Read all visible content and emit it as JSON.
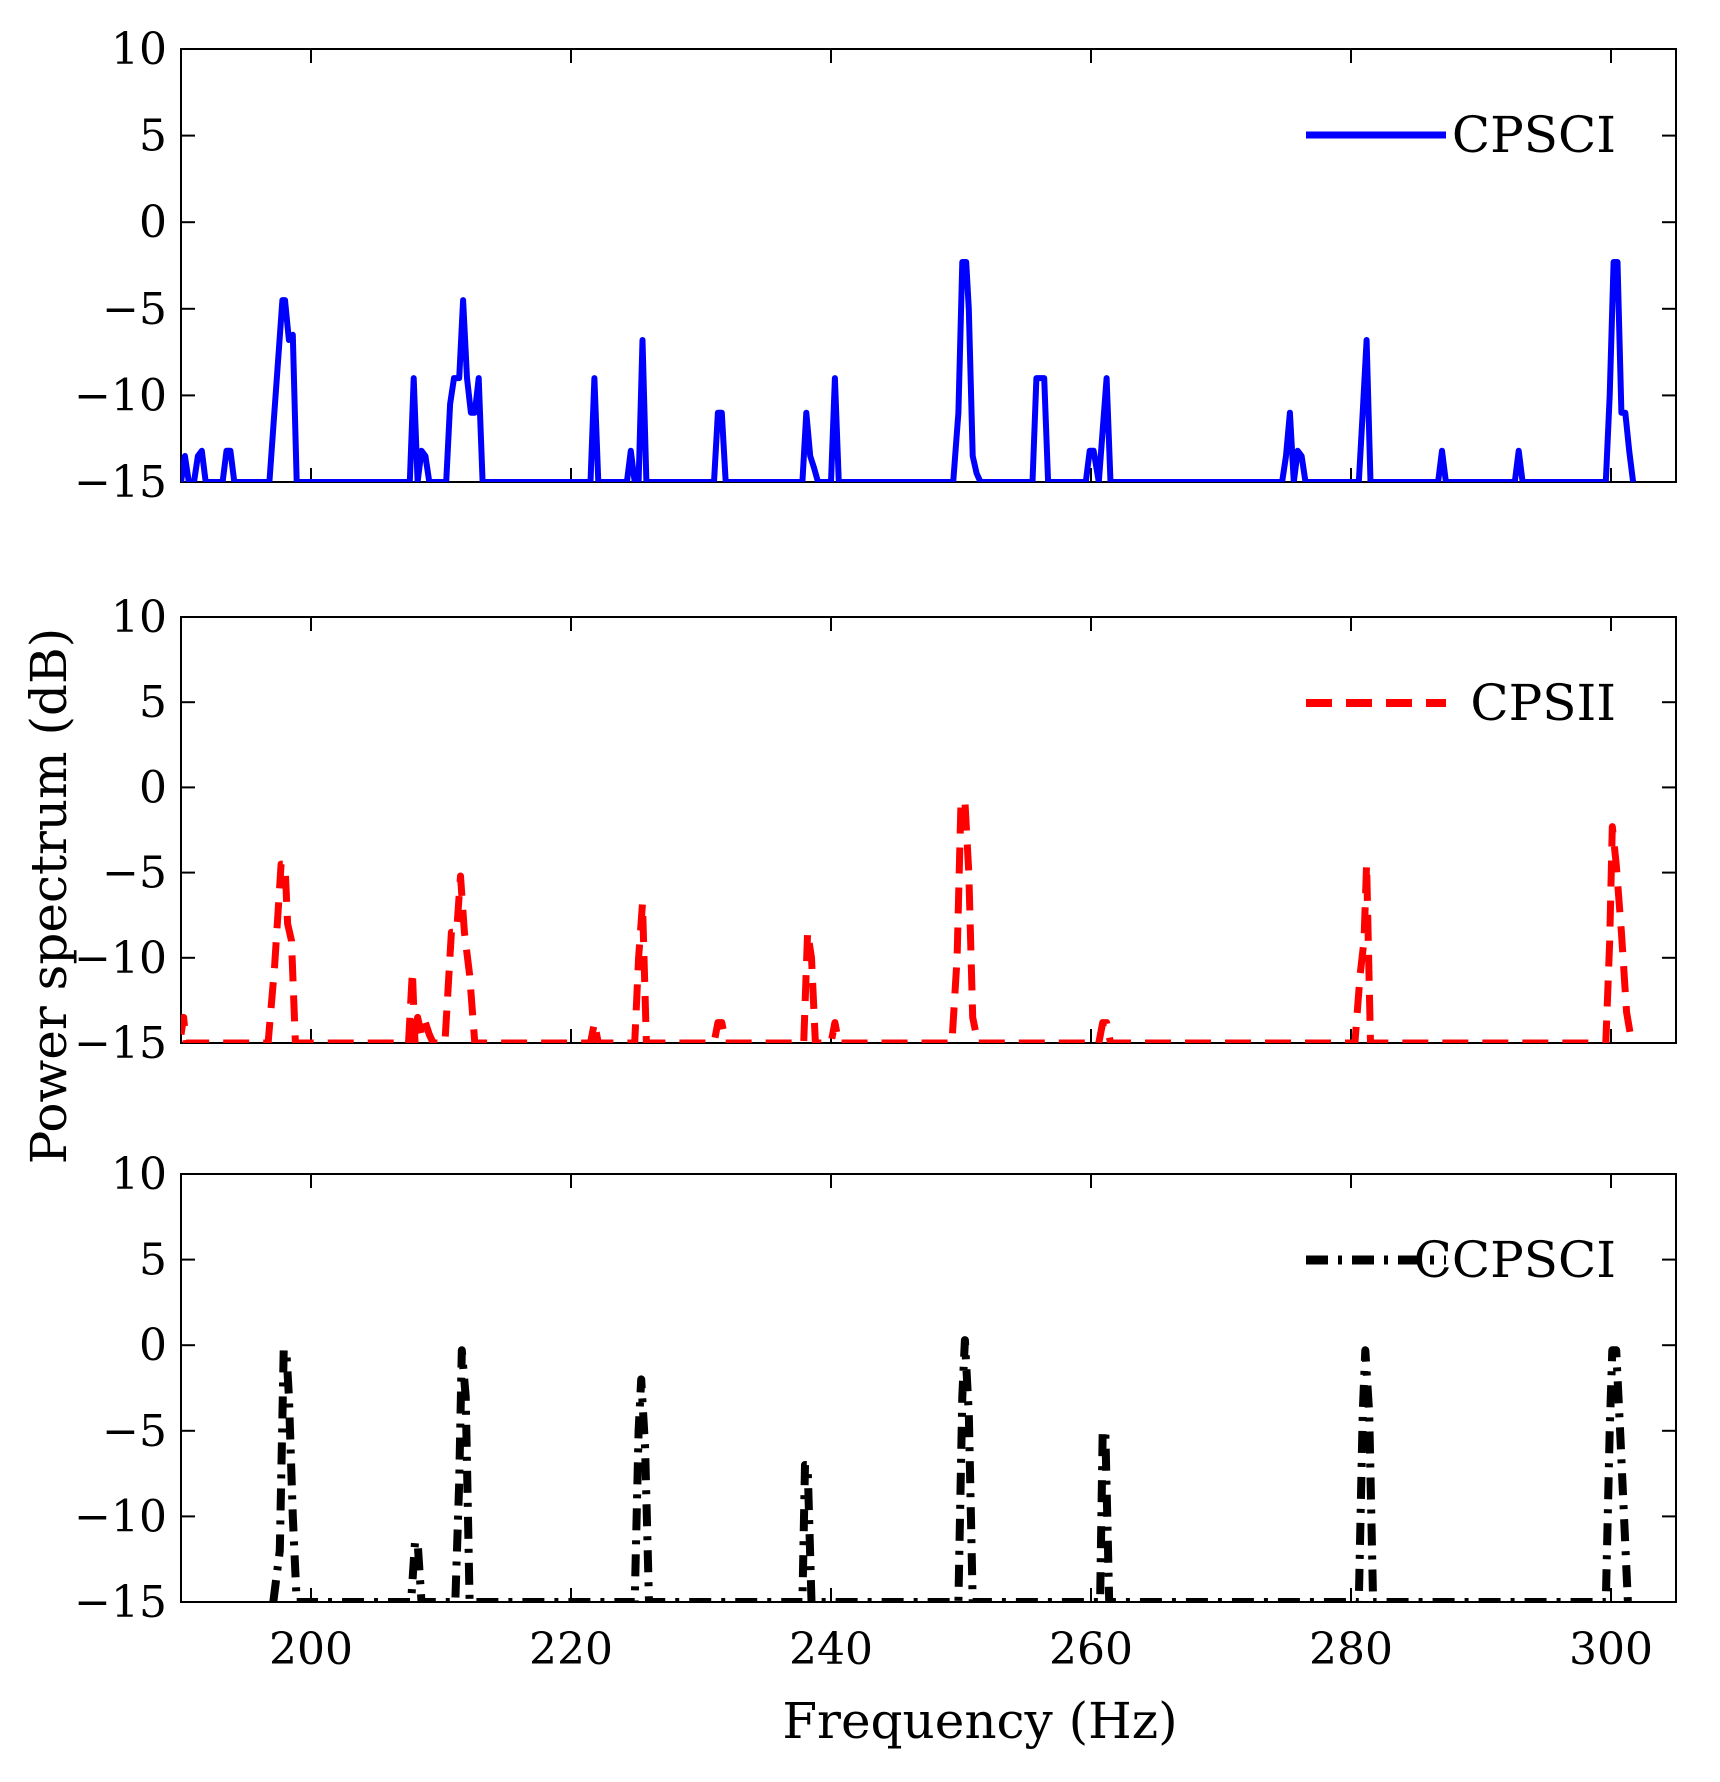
{
  "chart_data": [
    {
      "type": "line",
      "legend": "CPSCI",
      "color": "#0000ff",
      "line_style": "solid",
      "xlim": [
        190,
        305
      ],
      "ylim": [
        -15,
        10
      ],
      "yticks": [
        10,
        5,
        0,
        -5,
        -10,
        -15
      ],
      "ytick_labels": [
        "10",
        "5",
        "0",
        "−5",
        "−10",
        "−15"
      ],
      "legend_position": "top-right",
      "show_xtick_labels": false,
      "series": [
        {
          "name": "CPSCI",
          "x": [
            190.0,
            190.3,
            190.6,
            191.0,
            191.3,
            191.6,
            191.9,
            192.2,
            193.2,
            193.5,
            193.8,
            194.1,
            194.4,
            196.8,
            197.8,
            198.0,
            198.3,
            198.6,
            198.9,
            207.6,
            207.9,
            208.2,
            208.5,
            208.8,
            209.1,
            209.4,
            210.4,
            210.7,
            211.0,
            211.4,
            211.7,
            212.0,
            212.3,
            212.6,
            212.9,
            213.2,
            221.5,
            221.8,
            222.1,
            224.3,
            224.6,
            224.9,
            225.2,
            225.5,
            225.8,
            226.1,
            231.0,
            231.3,
            231.6,
            231.9,
            237.8,
            238.1,
            238.4,
            238.7,
            239.0,
            240.0,
            240.3,
            240.6,
            249.4,
            249.8,
            250.1,
            250.4,
            250.6,
            250.9,
            251.2,
            251.5,
            255.5,
            255.8,
            256.1,
            256.4,
            256.7,
            259.6,
            259.9,
            260.2,
            260.6,
            260.9,
            261.2,
            261.5,
            274.7,
            275.0,
            275.3,
            275.6,
            275.9,
            276.2,
            276.5,
            280.6,
            280.9,
            281.2,
            281.5,
            286.7,
            287.0,
            287.3,
            292.6,
            292.9,
            293.2,
            299.6,
            299.9,
            300.2,
            300.5,
            300.8,
            301.1,
            301.4,
            301.7
          ],
          "y": [
            -15,
            -13.5,
            -15,
            -15,
            -13.5,
            -13.2,
            -15,
            -15,
            -15,
            -13.2,
            -13.2,
            -15,
            -15,
            -15,
            -4.5,
            -4.5,
            -6.8,
            -6.5,
            -15,
            -15,
            -9,
            -15,
            -13.2,
            -13.5,
            -15,
            -15,
            -15,
            -10.5,
            -9,
            -9,
            -4.5,
            -9,
            -11,
            -11,
            -9,
            -15,
            -15,
            -9,
            -15,
            -15,
            -13.2,
            -15,
            -15,
            -6.8,
            -15,
            -15,
            -15,
            -11,
            -11,
            -15,
            -15,
            -11,
            -13.5,
            -14.2,
            -15,
            -15,
            -9,
            -15,
            -15,
            -11,
            -2.3,
            -2.3,
            -5,
            -13.5,
            -14.5,
            -15,
            -15,
            -9,
            -9,
            -9,
            -15,
            -15,
            -13.2,
            -13.2,
            -15,
            -12,
            -9,
            -15,
            -15,
            -13.5,
            -11,
            -15,
            -13.2,
            -13.5,
            -15,
            -15,
            -11,
            -6.8,
            -15,
            -15,
            -13.2,
            -15,
            -15,
            -13.2,
            -15,
            -15,
            -10,
            -2.3,
            -2.3,
            -11,
            -11,
            -13.2,
            -15
          ]
        }
      ]
    },
    {
      "type": "line",
      "legend": "CPSII",
      "color": "#ff0000",
      "line_style": "dashed",
      "xlim": [
        190,
        305
      ],
      "ylim": [
        -15,
        10
      ],
      "yticks": [
        10,
        5,
        0,
        -5,
        -10,
        -15
      ],
      "ytick_labels": [
        "10",
        "5",
        "0",
        "−5",
        "−10",
        "−15"
      ],
      "legend_position": "top-right",
      "show_xtick_labels": false,
      "series": [
        {
          "name": "CPSII",
          "x": [
            190.0,
            190.2,
            190.4,
            196.7,
            197.2,
            197.7,
            198.0,
            198.2,
            198.5,
            198.8,
            207.5,
            207.8,
            208.0,
            208.2,
            208.5,
            208.8,
            209.1,
            209.4,
            210.3,
            210.8,
            211.2,
            211.5,
            211.8,
            212.2,
            212.6,
            213.2,
            221.5,
            221.8,
            222.1,
            224.9,
            225.2,
            225.5,
            225.8,
            226.1,
            231.0,
            231.3,
            231.6,
            231.9,
            237.9,
            238.2,
            238.5,
            238.8,
            239.1,
            240.0,
            240.3,
            240.6,
            249.3,
            249.7,
            250.0,
            250.3,
            250.6,
            250.9,
            251.3,
            251.6,
            260.6,
            260.9,
            261.2,
            261.5,
            280.3,
            280.7,
            281.0,
            281.2,
            281.5,
            299.6,
            299.9,
            300.1,
            300.4,
            300.8,
            301.2,
            301.6
          ],
          "y": [
            -14.5,
            -13.5,
            -15,
            -15,
            -10.5,
            -4.5,
            -4.5,
            -8,
            -9,
            -15,
            -15,
            -10.8,
            -15,
            -13.5,
            -14.5,
            -13.8,
            -14.5,
            -15,
            -15,
            -8.5,
            -8.5,
            -5.2,
            -8.5,
            -11,
            -15,
            -15,
            -15,
            -13.8,
            -15,
            -15,
            -10,
            -6.8,
            -15,
            -15,
            -15,
            -13.8,
            -13.8,
            -15,
            -15,
            -8.5,
            -10,
            -15,
            -15,
            -15,
            -13.8,
            -15,
            -15,
            -10,
            -0.8,
            -0.8,
            -5,
            -13.5,
            -15,
            -15,
            -15,
            -13.8,
            -13.8,
            -15,
            -15,
            -11,
            -9,
            -4.5,
            -15,
            -15,
            -9,
            -2.3,
            -4.5,
            -8.5,
            -13.2,
            -15
          ]
        }
      ]
    },
    {
      "type": "line",
      "legend": "CCPSCI",
      "color": "#000000",
      "line_style": "dash-dot",
      "xlim": [
        190,
        305
      ],
      "ylim": [
        -15,
        10
      ],
      "yticks": [
        10,
        5,
        0,
        -5,
        -10,
        -15
      ],
      "ytick_labels": [
        "10",
        "5",
        "0",
        "−5",
        "−10",
        "−15"
      ],
      "xticks": [
        200,
        220,
        240,
        260,
        280,
        300
      ],
      "xtick_labels": [
        "200",
        "220",
        "240",
        "260",
        "280",
        "300"
      ],
      "legend_position": "top-right",
      "show_xtick_labels": true,
      "series": [
        {
          "name": "CCPSCI",
          "x": [
            197.1,
            197.6,
            197.9,
            198.1,
            198.3,
            198.6,
            198.9,
            207.7,
            208.0,
            208.2,
            208.5,
            211.1,
            211.4,
            211.6,
            211.9,
            212.2,
            224.9,
            225.2,
            225.4,
            225.7,
            226.0,
            237.8,
            238.0,
            238.2,
            238.5,
            249.8,
            250.1,
            250.3,
            250.6,
            250.9,
            260.7,
            260.9,
            261.1,
            261.4,
            280.6,
            280.9,
            281.1,
            281.4,
            281.7,
            299.6,
            299.9,
            300.1,
            300.4,
            300.7,
            301.0,
            301.3
          ],
          "y": [
            -15,
            -12,
            -0.3,
            -0.3,
            -3,
            -10,
            -15,
            -15,
            -11.5,
            -11.5,
            -15,
            -15,
            -8,
            -0.3,
            -3,
            -15,
            -15,
            -5,
            -2,
            -6,
            -15,
            -15,
            -7,
            -7,
            -15,
            -15,
            -3,
            0.3,
            -4,
            -15,
            -15,
            -5,
            -5,
            -15,
            -15,
            -4,
            -0.3,
            -4,
            -15,
            -15,
            -5,
            -0.3,
            -0.3,
            -5,
            -10,
            -15
          ]
        }
      ]
    }
  ],
  "axes": {
    "ylabel": "Power spectrum (dB)",
    "xlabel": "Frequency (Hz)"
  }
}
